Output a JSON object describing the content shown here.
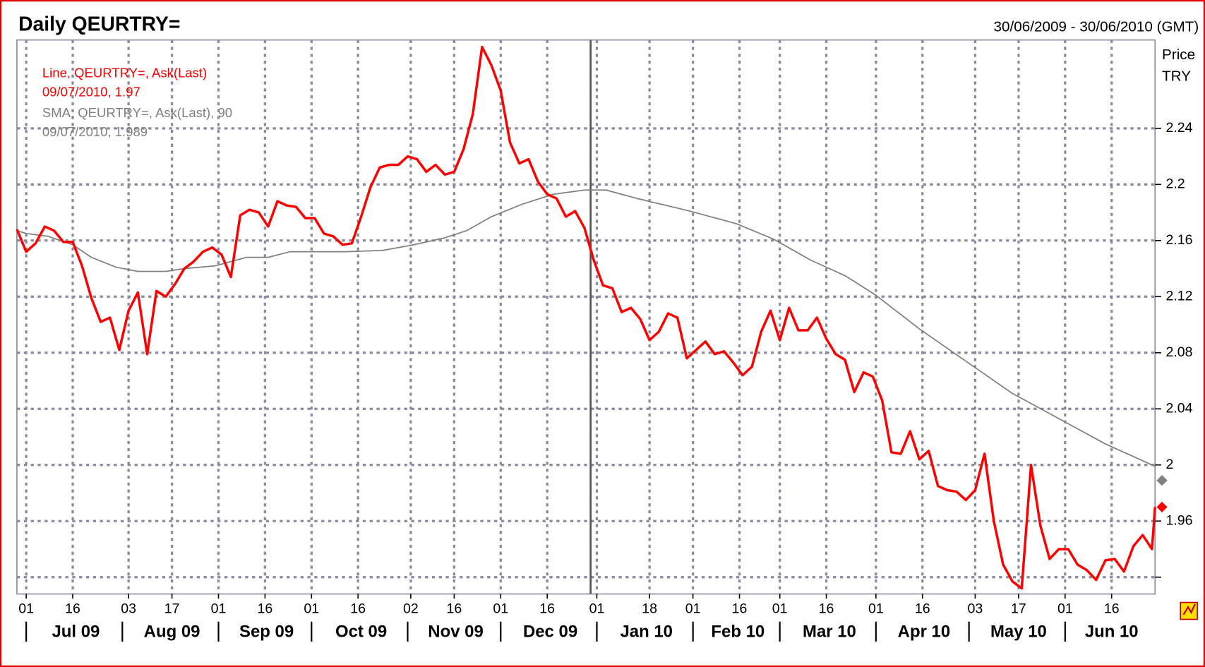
{
  "chart_data": {
    "type": "line",
    "title": "Daily QEURTRY=",
    "date_range": "30/06/2009 - 30/06/2010 (GMT)",
    "y_label": [
      "Price",
      "TRY"
    ],
    "xlim": [
      "2009-06-28",
      "2010-06-30"
    ],
    "ylim": [
      1.908,
      2.303
    ],
    "yticks": [
      {
        "value": 1.92,
        "label": null
      },
      1.96,
      2,
      2.04,
      2.08,
      2.12,
      2.16,
      2.2,
      2.24
    ],
    "xticks": [
      {
        "value": "2009-07-01",
        "label": "01"
      },
      {
        "value": "2009-07-16",
        "label": "16"
      },
      {
        "value": "2009-08-03",
        "label": "03"
      },
      {
        "value": "2009-08-17",
        "label": "17"
      },
      {
        "value": "2009-09-01",
        "label": "01"
      },
      {
        "value": "2009-09-16",
        "label": "16"
      },
      {
        "value": "2009-10-01",
        "label": "01"
      },
      {
        "value": "2009-10-16",
        "label": "16"
      },
      {
        "value": "2009-11-02",
        "label": "02"
      },
      {
        "value": "2009-11-16",
        "label": "16"
      },
      {
        "value": "2009-12-01",
        "label": "01"
      },
      {
        "value": "2009-12-16",
        "label": "16"
      },
      {
        "value": "2010-01-01",
        "label": "01"
      },
      {
        "value": "2010-01-18",
        "label": "18"
      },
      {
        "value": "2010-02-01",
        "label": "01"
      },
      {
        "value": "2010-02-16",
        "label": "16"
      },
      {
        "value": "2010-03-01",
        "label": "01"
      },
      {
        "value": "2010-03-16",
        "label": "16"
      },
      {
        "value": "2010-04-01",
        "label": "01"
      },
      {
        "value": "2010-04-16",
        "label": "16"
      },
      {
        "value": "2010-05-03",
        "label": "03"
      },
      {
        "value": "2010-05-17",
        "label": "17"
      },
      {
        "value": "2010-06-01",
        "label": "01"
      },
      {
        "value": "2010-06-16",
        "label": "16"
      }
    ],
    "months": [
      {
        "value": "2009-07-01",
        "label": "Jul 09"
      },
      {
        "value": "2009-08-01",
        "label": "Aug 09"
      },
      {
        "value": "2009-09-01",
        "label": "Sep 09"
      },
      {
        "value": "2009-10-01",
        "label": "Oct 09"
      },
      {
        "value": "2009-11-01",
        "label": "Nov 09"
      },
      {
        "value": "2009-12-01",
        "label": "Dec 09"
      },
      {
        "value": "2010-01-01",
        "label": "Jan 10"
      },
      {
        "value": "2010-02-01",
        "label": "Feb 10"
      },
      {
        "value": "2010-03-01",
        "label": "Mar 10"
      },
      {
        "value": "2010-04-01",
        "label": "Apr 10"
      },
      {
        "value": "2010-05-01",
        "label": "May 10"
      },
      {
        "value": "2010-06-01",
        "label": "Jun 10"
      }
    ],
    "grid": true,
    "cursor": "2009-12-30",
    "series": [
      {
        "name": "Line, QEURTRY=, Ask(Last)",
        "color": "#ff0000",
        "last_label": "09/07/2010, 1.97",
        "last_value": 1.97,
        "x": [
          "2009-06-28",
          "2009-07-01",
          "2009-07-04",
          "2009-07-07",
          "2009-07-10",
          "2009-07-13",
          "2009-07-16",
          "2009-07-19",
          "2009-07-22",
          "2009-07-25",
          "2009-07-28",
          "2009-07-31",
          "2009-08-03",
          "2009-08-06",
          "2009-08-09",
          "2009-08-12",
          "2009-08-15",
          "2009-08-18",
          "2009-08-21",
          "2009-08-24",
          "2009-08-27",
          "2009-08-30",
          "2009-09-02",
          "2009-09-05",
          "2009-09-08",
          "2009-09-11",
          "2009-09-14",
          "2009-09-17",
          "2009-09-20",
          "2009-09-23",
          "2009-09-26",
          "2009-09-29",
          "2009-10-02",
          "2009-10-05",
          "2009-10-08",
          "2009-10-11",
          "2009-10-14",
          "2009-10-17",
          "2009-10-20",
          "2009-10-23",
          "2009-10-26",
          "2009-10-29",
          "2009-11-01",
          "2009-11-04",
          "2009-11-07",
          "2009-11-10",
          "2009-11-13",
          "2009-11-16",
          "2009-11-19",
          "2009-11-22",
          "2009-11-25",
          "2009-11-28",
          "2009-12-01",
          "2009-12-04",
          "2009-12-07",
          "2009-12-10",
          "2009-12-13",
          "2009-12-16",
          "2009-12-19",
          "2009-12-22",
          "2009-12-25",
          "2009-12-28",
          "2009-12-31",
          "2010-01-03",
          "2010-01-06",
          "2010-01-09",
          "2010-01-12",
          "2010-01-15",
          "2010-01-18",
          "2010-01-21",
          "2010-01-24",
          "2010-01-27",
          "2010-01-30",
          "2010-02-02",
          "2010-02-05",
          "2010-02-08",
          "2010-02-11",
          "2010-02-14",
          "2010-02-17",
          "2010-02-20",
          "2010-02-23",
          "2010-02-26",
          "2010-03-01",
          "2010-03-04",
          "2010-03-07",
          "2010-03-10",
          "2010-03-13",
          "2010-03-16",
          "2010-03-19",
          "2010-03-22",
          "2010-03-25",
          "2010-03-28",
          "2010-03-31",
          "2010-04-03",
          "2010-04-06",
          "2010-04-09",
          "2010-04-12",
          "2010-04-15",
          "2010-04-18",
          "2010-04-21",
          "2010-04-24",
          "2010-04-27",
          "2010-04-30",
          "2010-05-03",
          "2010-05-06",
          "2010-05-09",
          "2010-05-12",
          "2010-05-15",
          "2010-05-18",
          "2010-05-21",
          "2010-05-24",
          "2010-05-27",
          "2010-05-30",
          "2010-06-02",
          "2010-06-05",
          "2010-06-08",
          "2010-06-11",
          "2010-06-14",
          "2010-06-17",
          "2010-06-20",
          "2010-06-23",
          "2010-06-26",
          "2010-06-29",
          "2010-06-30"
        ],
        "values": [
          2.168,
          2.152,
          2.158,
          2.17,
          2.167,
          2.159,
          2.159,
          2.142,
          2.119,
          2.102,
          2.105,
          2.082,
          2.11,
          2.123,
          2.079,
          2.124,
          2.12,
          2.129,
          2.14,
          2.145,
          2.152,
          2.155,
          2.15,
          2.134,
          2.178,
          2.182,
          2.18,
          2.17,
          2.188,
          2.185,
          2.184,
          2.176,
          2.176,
          2.165,
          2.163,
          2.157,
          2.158,
          2.177,
          2.198,
          2.212,
          2.214,
          2.214,
          2.22,
          2.218,
          2.209,
          2.214,
          2.207,
          2.209,
          2.225,
          2.25,
          2.298,
          2.285,
          2.267,
          2.23,
          2.215,
          2.218,
          2.202,
          2.193,
          2.19,
          2.177,
          2.181,
          2.169,
          2.146,
          2.128,
          2.126,
          2.109,
          2.112,
          2.104,
          2.089,
          2.095,
          2.108,
          2.105,
          2.076,
          2.082,
          2.088,
          2.079,
          2.081,
          2.073,
          2.064,
          2.07,
          2.095,
          2.11,
          2.089,
          2.112,
          2.096,
          2.096,
          2.105,
          2.09,
          2.079,
          2.075,
          2.052,
          2.066,
          2.063,
          2.046,
          2.009,
          2.008,
          2.024,
          2.004,
          2.01,
          1.985,
          1.982,
          1.981,
          1.975,
          1.982,
          2.008,
          1.96,
          1.929,
          1.917,
          1.912,
          2.0,
          1.957,
          1.933,
          1.94,
          1.94,
          1.929,
          1.925,
          1.918,
          1.932,
          1.933,
          1.924,
          1.942,
          1.95,
          1.94,
          1.97
        ]
      },
      {
        "name": "SMA, QEURTRY=, Ask(Last),  90",
        "color": "#808080",
        "last_label": "09/07/2010, 1.989",
        "last_value": 1.989,
        "x": [
          "2009-06-28",
          "2009-07-01",
          "2009-07-08",
          "2009-07-16",
          "2009-07-22",
          "2009-07-30",
          "2009-08-06",
          "2009-08-15",
          "2009-08-21",
          "2009-08-31",
          "2009-09-10",
          "2009-09-17",
          "2009-09-24",
          "2009-10-12",
          "2009-10-24",
          "2009-11-03",
          "2009-11-13",
          "2009-11-20",
          "2009-11-28",
          "2009-12-08",
          "2009-12-18",
          "2009-12-28",
          "2010-01-04",
          "2010-01-14",
          "2010-01-31",
          "2010-02-15",
          "2010-02-27",
          "2010-03-11",
          "2010-03-22",
          "2010-04-01",
          "2010-04-15",
          "2010-04-30",
          "2010-05-15",
          "2010-05-30",
          "2010-06-14",
          "2010-06-30"
        ],
        "values": [
          2.167,
          2.165,
          2.163,
          2.157,
          2.148,
          2.141,
          2.138,
          2.138,
          2.14,
          2.142,
          2.148,
          2.148,
          2.152,
          2.152,
          2.153,
          2.157,
          2.162,
          2.167,
          2.177,
          2.186,
          2.193,
          2.196,
          2.196,
          2.19,
          2.181,
          2.172,
          2.161,
          2.146,
          2.135,
          2.121,
          2.097,
          2.074,
          2.051,
          2.033,
          2.015,
          1.999
        ]
      }
    ]
  }
}
